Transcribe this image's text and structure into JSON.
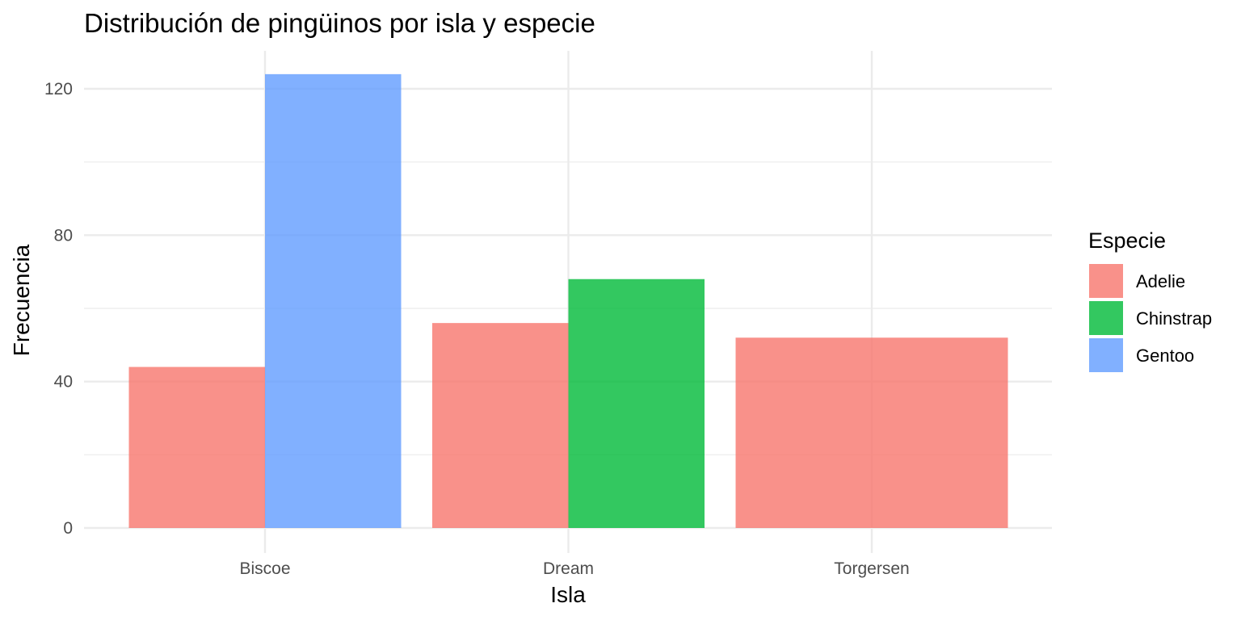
{
  "chart_data": {
    "type": "bar",
    "title": "Distribución de pingüinos por isla y especie",
    "xlabel": "Isla",
    "ylabel": "Frecuencia",
    "categories": [
      "Biscoe",
      "Dream",
      "Torgersen"
    ],
    "ylim": [
      0,
      130
    ],
    "yticks": [
      0,
      40,
      80,
      120
    ],
    "grid": true,
    "legend": {
      "title": "Especie",
      "placement": "right"
    },
    "series": [
      {
        "name": "Adelie",
        "color": "#f8766d",
        "values": [
          44,
          56,
          52
        ]
      },
      {
        "name": "Chinstrap",
        "color": "#00ba38",
        "values": [
          null,
          68,
          null
        ]
      },
      {
        "name": "Gentoo",
        "color": "#619cff",
        "values": [
          124,
          null,
          null
        ]
      }
    ]
  }
}
